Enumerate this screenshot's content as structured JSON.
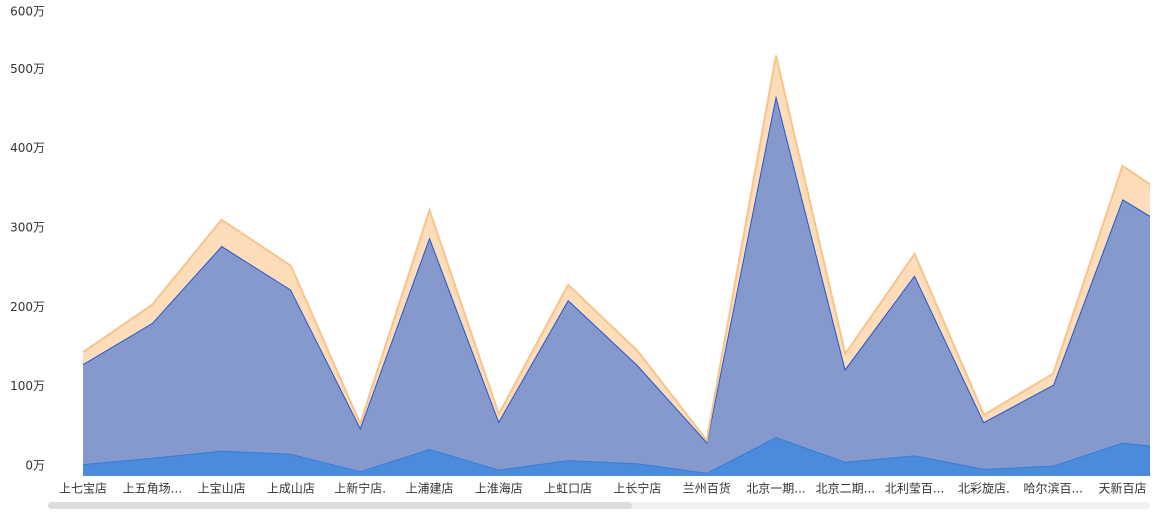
{
  "chart_data": {
    "type": "stacked_area",
    "categories": [
      "上七宝店",
      "上五角场...",
      "上宝山店",
      "上成山店",
      "上新宁店.",
      "上浦建店",
      "上淮海店",
      "上虹口店",
      "上长宁店",
      "兰州百货",
      "北京一期...",
      "北京二期...",
      "北利莹百...",
      "北彩旋店.",
      "哈尔滨百...",
      "天新百店",
      null
    ],
    "series": [
      {
        "color": "#4a8bdb",
        "line_color": "#2f7fe0",
        "values": [
          15,
          23,
          32,
          28,
          6,
          34,
          8,
          20,
          16,
          4,
          49,
          18,
          26,
          9,
          13,
          42,
          33
        ]
      },
      {
        "color": "#8599cc",
        "line_color": "#1f56d6",
        "values": [
          126,
          170,
          258,
          207,
          55,
          267,
          61,
          202,
          124,
          39,
          431,
          117,
          227,
          59,
          102,
          307,
          263
        ]
      },
      {
        "color": "#fddcb9",
        "line_color": "#f8c48b",
        "values": [
          15,
          23,
          33,
          30,
          5,
          34,
          9,
          19,
          18,
          2,
          50,
          19,
          27,
          9,
          14,
          42,
          36
        ]
      }
    ],
    "ylim": [
      0,
      600
    ],
    "yticks": [
      {
        "value": 0,
        "label": "0万"
      },
      {
        "value": 100,
        "label": "100万"
      },
      {
        "value": 200,
        "label": "200万"
      },
      {
        "value": 300,
        "label": "300万"
      },
      {
        "value": 400,
        "label": "400万"
      },
      {
        "value": 500,
        "label": "500万"
      },
      {
        "value": 600,
        "label": "600万"
      }
    ]
  }
}
